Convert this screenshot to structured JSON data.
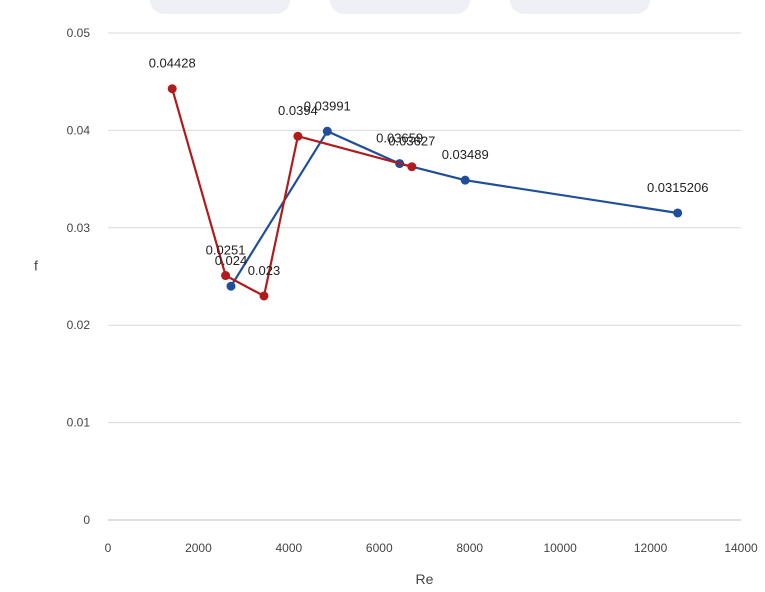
{
  "chart_data": {
    "type": "line",
    "title": "",
    "xlabel": "Re",
    "ylabel": "f",
    "xlim": [
      0,
      14000
    ],
    "ylim": [
      0,
      0.05
    ],
    "x_ticks": [
      0,
      2000,
      4000,
      6000,
      8000,
      10000,
      12000,
      14000
    ],
    "y_ticks": [
      0,
      0.01,
      0.02,
      0.03,
      0.04,
      0.05
    ],
    "x_tick_labels": [
      "0",
      "2000",
      "4000",
      "6000",
      "8000",
      "10000",
      "12000",
      "14000"
    ],
    "y_tick_labels": [
      "0",
      "0.01",
      "0.02",
      "0.03",
      "0.04",
      "0.05"
    ],
    "grid": "horizontal",
    "legend": "none",
    "series": [
      {
        "color": "#1f4e9a",
        "points": [
          {
            "x": 2720,
            "y": 0.024,
            "label": "0.024"
          },
          {
            "x": 4850,
            "y": 0.03991,
            "label": "0.03991"
          },
          {
            "x": 6450,
            "y": 0.03659,
            "label": "0.03659"
          },
          {
            "x": 7900,
            "y": 0.03489,
            "label": "0.03489"
          },
          {
            "x": 12600,
            "y": 0.0315206,
            "label": "0.0315206"
          }
        ]
      },
      {
        "color": "#b01c1c",
        "points": [
          {
            "x": 1420,
            "y": 0.04428,
            "label": "0.04428"
          },
          {
            "x": 2600,
            "y": 0.0251,
            "label": "0.0251"
          },
          {
            "x": 3450,
            "y": 0.023,
            "label": "0.023"
          },
          {
            "x": 4200,
            "y": 0.0394,
            "label": "0.0394"
          },
          {
            "x": 6720,
            "y": 0.03627,
            "label": "0.03627"
          }
        ]
      }
    ]
  }
}
